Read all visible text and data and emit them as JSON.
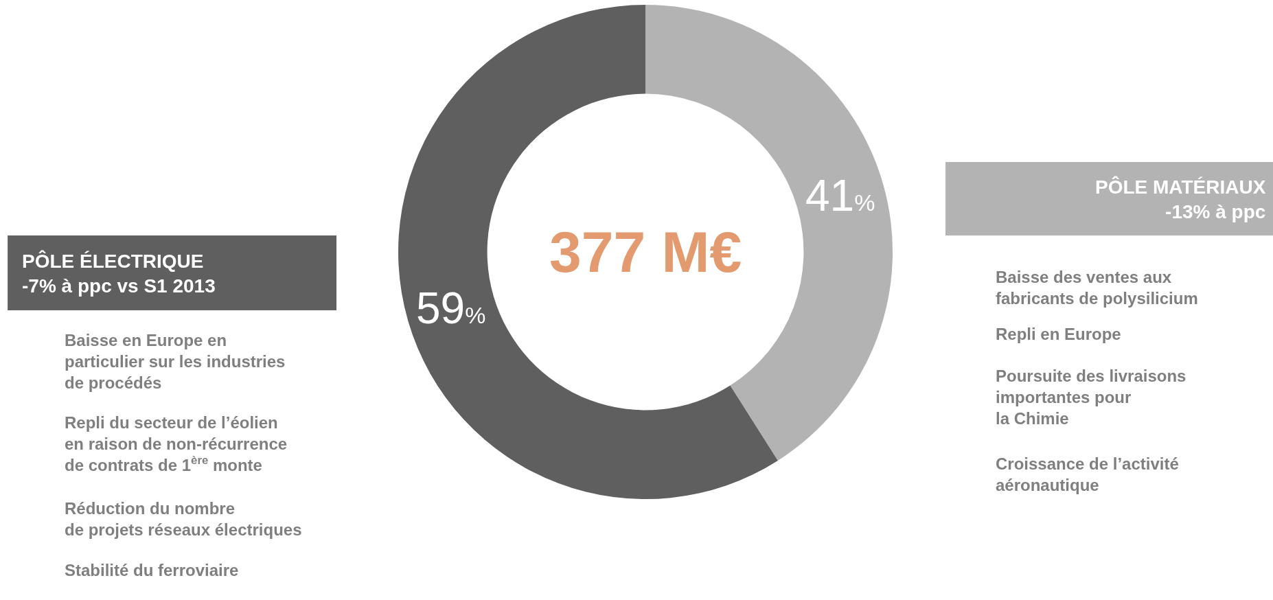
{
  "chart_data": {
    "type": "donut",
    "categories": [
      "PÔLE MATÉRIAUX",
      "PÔLE ÉLECTRIQUE"
    ],
    "values": [
      41,
      59
    ],
    "value_labels": [
      "41%",
      "59%"
    ],
    "colors": [
      "#b3b3b3",
      "#5f5f5f"
    ],
    "legend": false,
    "annotations": [
      "377 M€",
      "-13% à ppc",
      "-7% à ppc vs S1 2013",
      "Baisse en Europe en\nparticulier sur les industries\nde procédés",
      "Repli du secteur de l’éolien\nen raison de non-récurrence\nde contrats de 1$^{ère}$ monte",
      "Réduction du nombre\nde projets réseaux électriques",
      "Stabilité du ferroviaire",
      "Baisse des ventes aux\nfabricants de polysilicium",
      "Repli en Europe",
      "Poursuite des livraisons\nimportantes pour\nla Chimie",
      "Croissance de l’activité\naéronautique"
    ]
  }
}
